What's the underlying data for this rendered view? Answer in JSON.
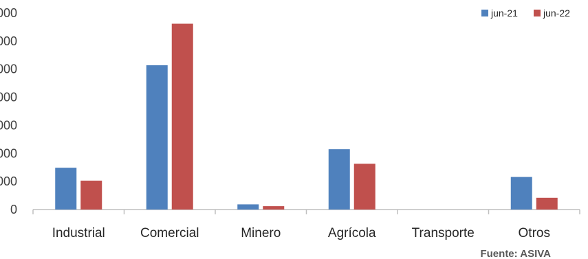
{
  "chart_data": {
    "type": "bar",
    "categories": [
      "Industrial",
      "Comercial",
      "Minero",
      "Agrícola",
      "Transporte",
      "Otros"
    ],
    "series": [
      {
        "name": "jun-21",
        "color": "#4f81bd",
        "values": [
          1490,
          5140,
          185,
          2150,
          0,
          1160
        ]
      },
      {
        "name": "jun-22",
        "color": "#c0504d",
        "values": [
          1030,
          6620,
          120,
          1630,
          0,
          420
        ]
      }
    ],
    "y_tick_labels": [
      "0",
      "000",
      "000",
      "000",
      "000",
      "000",
      "000",
      "000"
    ],
    "ylim": [
      0,
      7000
    ],
    "grid": false,
    "legend_position": "top-right",
    "source_note": "Fuente: ASIVA"
  }
}
